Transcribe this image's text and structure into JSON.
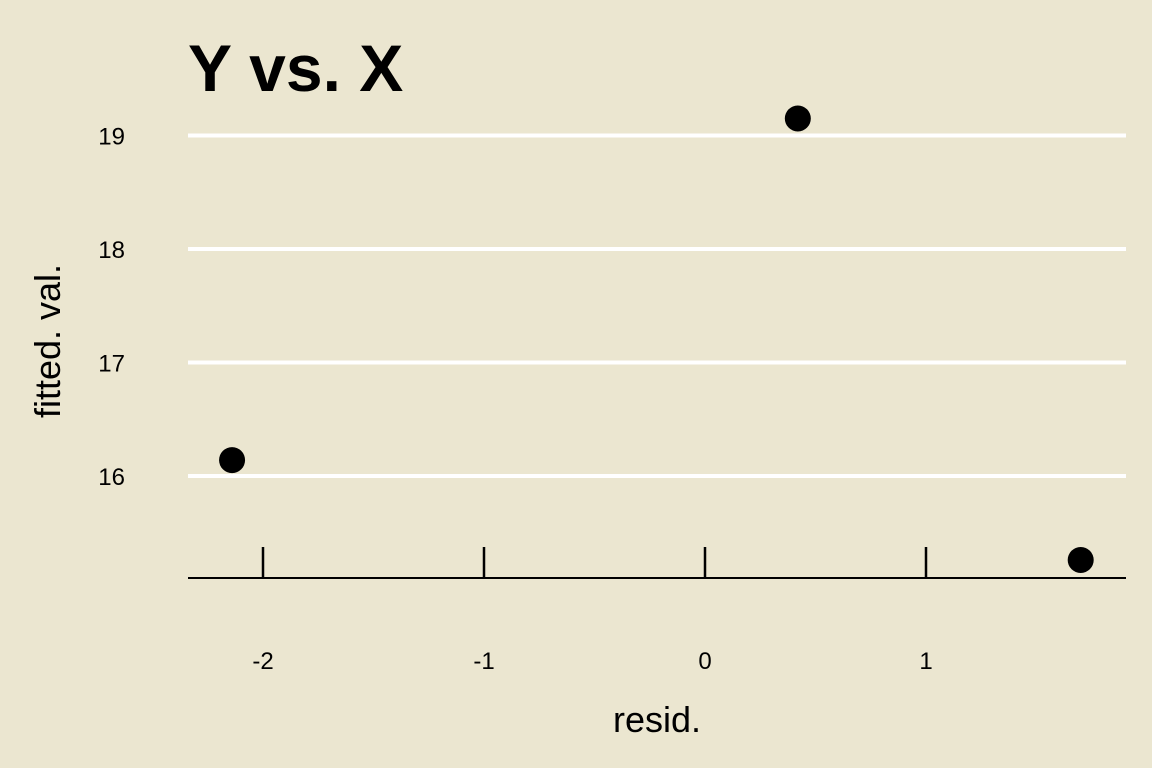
{
  "colors": {
    "background": "#EBE6D0",
    "gridline": "#FFFFFF",
    "axis": "#000000",
    "point": "#000000",
    "text": "#000000"
  },
  "chart_data": {
    "type": "scatter",
    "title": "Y vs. X",
    "xlabel": "resid.",
    "ylabel": "fitted. val.",
    "x_ticks": [
      -2,
      -1,
      0,
      1
    ],
    "x_tick_labels": [
      "-2",
      "-1",
      "0",
      "1"
    ],
    "y_ticks": [
      16,
      17,
      18,
      19
    ],
    "y_tick_labels": [
      "16",
      "17",
      "18",
      "19"
    ],
    "xlim": [
      -2.34,
      1.9
    ],
    "ylim": [
      15.0,
      19.5
    ],
    "grid": "horizontal major gridlines",
    "legend": "none",
    "points": [
      {
        "x": -2.14,
        "y": 16.14
      },
      {
        "x": 0.42,
        "y": 19.15
      },
      {
        "x": 1.7,
        "y": 15.26
      }
    ]
  }
}
